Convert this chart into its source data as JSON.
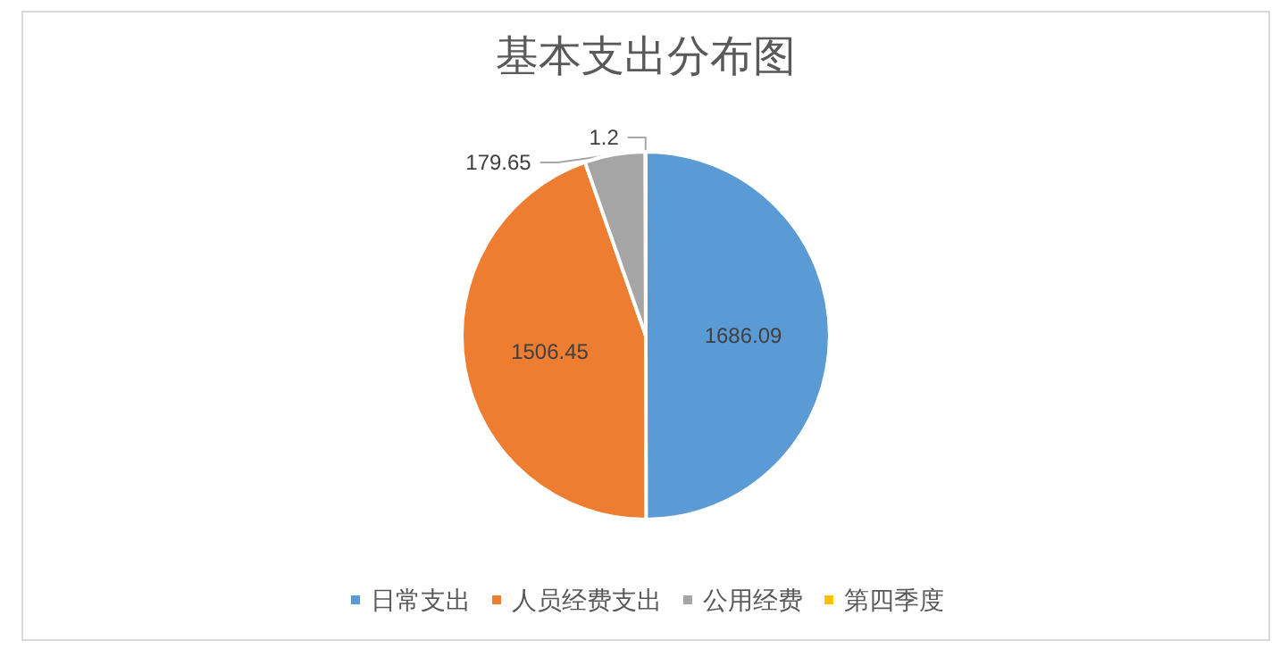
{
  "chart_data": {
    "type": "pie",
    "title": "基本支出分布图",
    "categories": [
      "日常支出",
      "人员经费支出",
      "公用经费",
      "第四季度"
    ],
    "values": [
      1686.09,
      1506.45,
      179.65,
      1.2
    ],
    "colors": [
      "#5b9bd5",
      "#ed7d31",
      "#a5a5a5",
      "#ffc000"
    ],
    "data_labels": true,
    "legend": "bottom"
  }
}
